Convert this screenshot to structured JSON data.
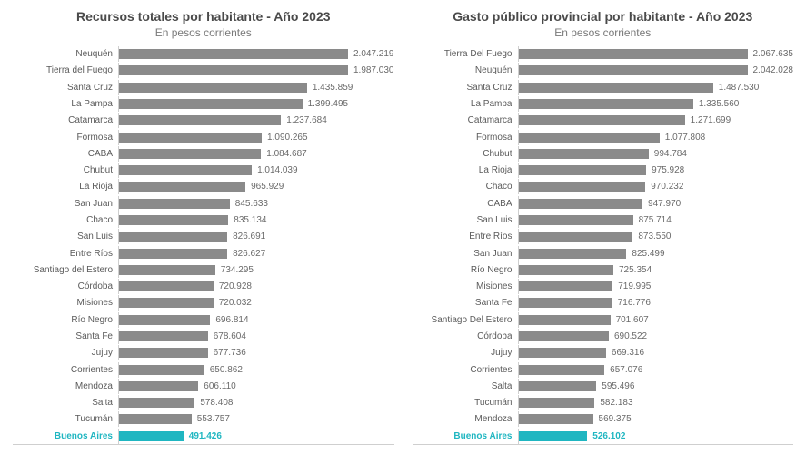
{
  "charts": [
    {
      "title": "Recursos totales por habitante - Año 2023",
      "subtitle": "En pesos corrientes",
      "max_value": 2100000,
      "bar_color": "#8a8a8a",
      "highlight_bar_color": "#1fb6c1",
      "highlight_text_color": "#1fb6c1",
      "label_color": "#5a5a5a",
      "value_color": "#6a6a6a",
      "bars": [
        {
          "label": "Neuquén",
          "value": 2047219,
          "display": "2.047.219"
        },
        {
          "label": "Tierra del Fuego",
          "value": 1987030,
          "display": "1.987.030"
        },
        {
          "label": "Santa Cruz",
          "value": 1435859,
          "display": "1.435.859"
        },
        {
          "label": "La Pampa",
          "value": 1399495,
          "display": "1.399.495"
        },
        {
          "label": "Catamarca",
          "value": 1237684,
          "display": "1.237.684"
        },
        {
          "label": "Formosa",
          "value": 1090265,
          "display": "1.090.265"
        },
        {
          "label": "CABA",
          "value": 1084687,
          "display": "1.084.687"
        },
        {
          "label": "Chubut",
          "value": 1014039,
          "display": "1.014.039"
        },
        {
          "label": "La Rioja",
          "value": 965929,
          "display": "965.929"
        },
        {
          "label": "San Juan",
          "value": 845633,
          "display": "845.633"
        },
        {
          "label": "Chaco",
          "value": 835134,
          "display": "835.134"
        },
        {
          "label": "San Luis",
          "value": 826691,
          "display": "826.691"
        },
        {
          "label": "Entre Ríos",
          "value": 826627,
          "display": "826.627"
        },
        {
          "label": "Santiago del Estero",
          "value": 734295,
          "display": "734.295"
        },
        {
          "label": "Córdoba",
          "value": 720928,
          "display": "720.928"
        },
        {
          "label": "Misiones",
          "value": 720032,
          "display": "720.032"
        },
        {
          "label": "Río Negro",
          "value": 696814,
          "display": "696.814"
        },
        {
          "label": "Santa Fe",
          "value": 678604,
          "display": "678.604"
        },
        {
          "label": "Jujuy",
          "value": 677736,
          "display": "677.736"
        },
        {
          "label": "Corrientes",
          "value": 650862,
          "display": "650.862"
        },
        {
          "label": "Mendoza",
          "value": 606110,
          "display": "606.110"
        },
        {
          "label": "Salta",
          "value": 578408,
          "display": "578.408"
        },
        {
          "label": "Tucumán",
          "value": 553757,
          "display": "553.757"
        },
        {
          "label": "Buenos Aires",
          "value": 491426,
          "display": "491.426",
          "highlight": true
        }
      ]
    },
    {
      "title": "Gasto público provincial por habitante - Año 2023",
      "subtitle": "En pesos corrientes",
      "max_value": 2100000,
      "bar_color": "#8a8a8a",
      "highlight_bar_color": "#1fb6c1",
      "highlight_text_color": "#1fb6c1",
      "label_color": "#5a5a5a",
      "value_color": "#6a6a6a",
      "bars": [
        {
          "label": "Tierra Del Fuego",
          "value": 2067635,
          "display": "2.067.635"
        },
        {
          "label": "Neuquén",
          "value": 2042028,
          "display": "2.042.028"
        },
        {
          "label": "Santa Cruz",
          "value": 1487530,
          "display": "1.487.530"
        },
        {
          "label": "La Pampa",
          "value": 1335560,
          "display": "1.335.560"
        },
        {
          "label": "Catamarca",
          "value": 1271699,
          "display": "1.271.699"
        },
        {
          "label": "Formosa",
          "value": 1077808,
          "display": "1.077.808"
        },
        {
          "label": "Chubut",
          "value": 994784,
          "display": "994.784"
        },
        {
          "label": "La Rioja",
          "value": 975928,
          "display": "975.928"
        },
        {
          "label": "Chaco",
          "value": 970232,
          "display": "970.232"
        },
        {
          "label": "CABA",
          "value": 947970,
          "display": "947.970"
        },
        {
          "label": "San Luis",
          "value": 875714,
          "display": "875.714"
        },
        {
          "label": "Entre Ríos",
          "value": 873550,
          "display": "873.550"
        },
        {
          "label": "San Juan",
          "value": 825499,
          "display": "825.499"
        },
        {
          "label": "Río Negro",
          "value": 725354,
          "display": "725.354"
        },
        {
          "label": "Misiones",
          "value": 719995,
          "display": "719.995"
        },
        {
          "label": "Santa Fe",
          "value": 716776,
          "display": "716.776"
        },
        {
          "label": "Santiago Del Estero",
          "value": 701607,
          "display": "701.607"
        },
        {
          "label": "Córdoba",
          "value": 690522,
          "display": "690.522"
        },
        {
          "label": "Jujuy",
          "value": 669316,
          "display": "669.316"
        },
        {
          "label": "Corrientes",
          "value": 657076,
          "display": "657.076"
        },
        {
          "label": "Salta",
          "value": 595496,
          "display": "595.496"
        },
        {
          "label": "Tucumán",
          "value": 582183,
          "display": "582.183"
        },
        {
          "label": "Mendoza",
          "value": 569375,
          "display": "569.375"
        },
        {
          "label": "Buenos Aires",
          "value": 526102,
          "display": "526.102",
          "highlight": true
        }
      ]
    }
  ]
}
